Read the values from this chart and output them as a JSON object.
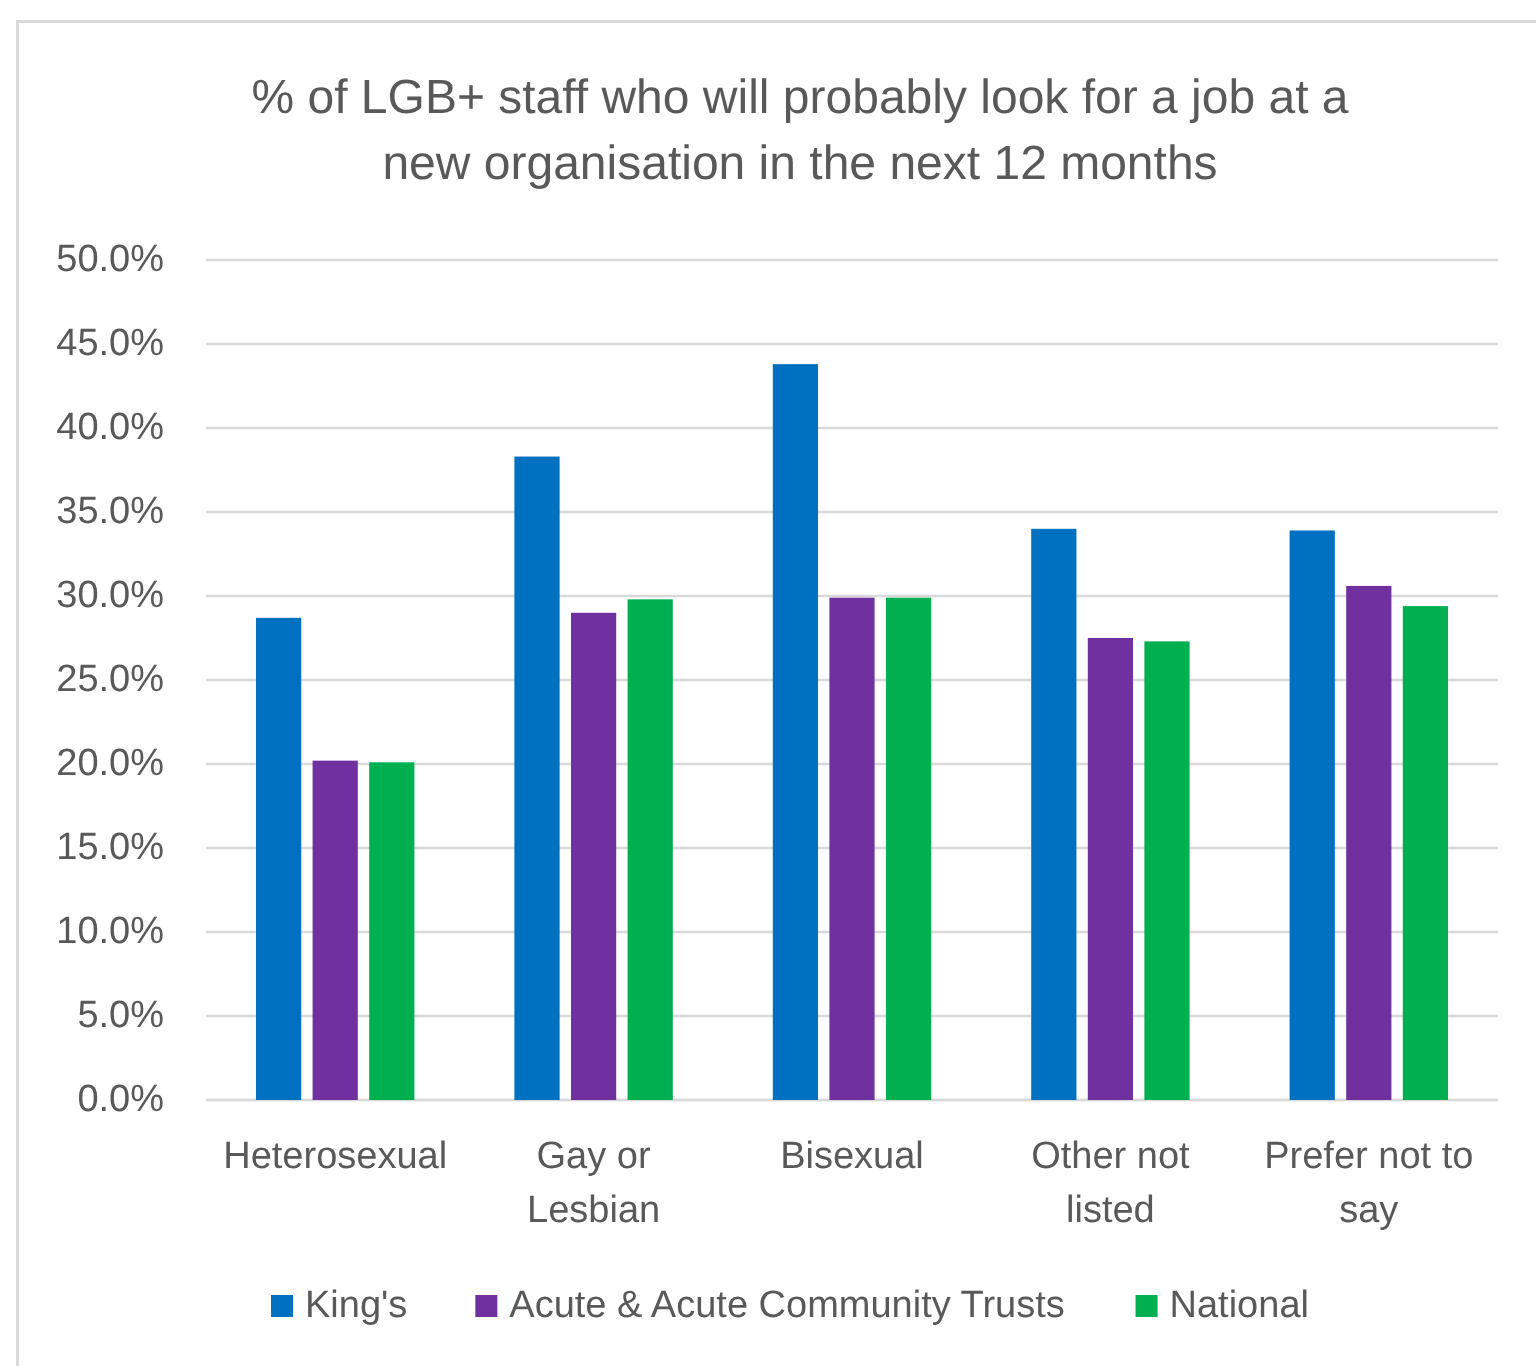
{
  "chart_data": {
    "type": "bar",
    "title": "% of LGB+ staff who will probably look for a job at a new organisation in the next 12 months",
    "categories": [
      "Heterosexual",
      "Gay or Lesbian",
      "Bisexual",
      "Other not listed",
      "Prefer not to say"
    ],
    "series": [
      {
        "name": "King's",
        "color": "#0070c0",
        "values": [
          28.7,
          38.3,
          43.8,
          34.0,
          33.9
        ]
      },
      {
        "name": "Acute & Acute Community Trusts",
        "color": "#7030a0",
        "values": [
          20.2,
          29.0,
          29.9,
          27.5,
          30.6
        ]
      },
      {
        "name": "National",
        "color": "#00b050",
        "values": [
          20.1,
          29.8,
          29.9,
          27.3,
          29.4
        ]
      }
    ],
    "ylim": [
      0,
      50
    ],
    "yticks": [
      {
        "value": 0,
        "label": "0.0%"
      },
      {
        "value": 5,
        "label": "5.0%"
      },
      {
        "value": 10,
        "label": "10.0%"
      },
      {
        "value": 15,
        "label": "15.0%"
      },
      {
        "value": 20,
        "label": "20.0%"
      },
      {
        "value": 25,
        "label": "25.0%"
      },
      {
        "value": 30,
        "label": "30.0%"
      },
      {
        "value": 35,
        "label": "35.0%"
      },
      {
        "value": 40,
        "label": "40.0%"
      },
      {
        "value": 45,
        "label": "45.0%"
      },
      {
        "value": 50,
        "label": "50.0%"
      }
    ],
    "grid": "y",
    "legend": "bottom"
  }
}
